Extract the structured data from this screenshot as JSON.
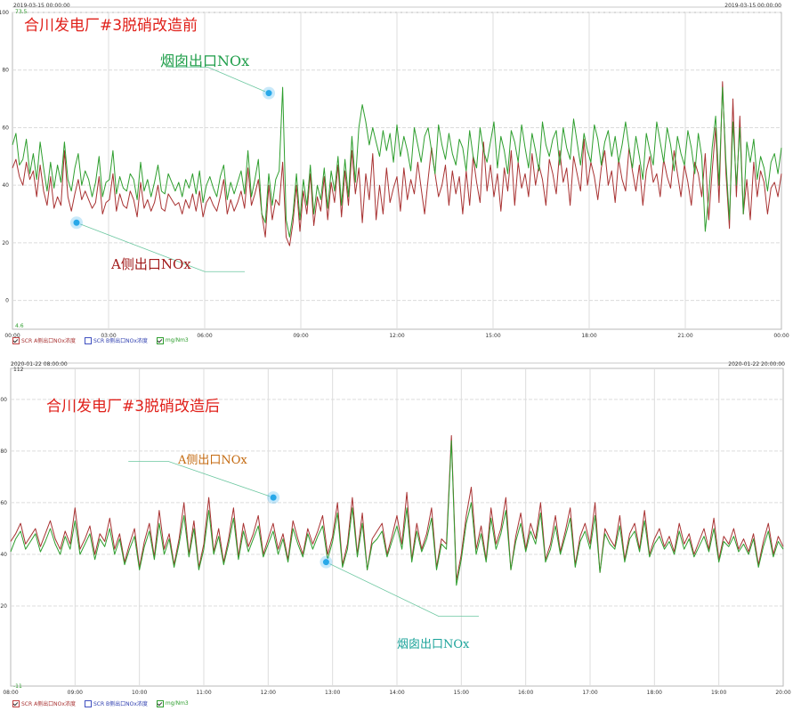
{
  "colors": {
    "red_series": "#a83232",
    "green_series": "#2e9e2e",
    "title_red": "#e0201a",
    "annot_green": "#1f9e4a",
    "annot_darkred": "#a01818",
    "annot_orange": "#c46a10",
    "annot_teal": "#1ba39a",
    "marker": "#29a8e8"
  },
  "chart_data": [
    {
      "type": "line",
      "title": "合川发电厂#3脱硝改造前",
      "header_left": "2019-03-15 00:00:00",
      "header_right": "2019-03-15 00:00:00",
      "top_value": "73.5",
      "bottom_value": "4.6",
      "yticks": [
        "100",
        "80",
        "60",
        "40",
        "20",
        "0"
      ],
      "ylim": [
        -10,
        100
      ],
      "xticks": [
        "00:00",
        "03:00",
        "06:00",
        "09:00",
        "12:00",
        "15:00",
        "18:00",
        "21:00",
        "00:00"
      ],
      "xlim": [
        0,
        24
      ],
      "legend": [
        "SCR A侧出口NOx浓度",
        "SCR B侧出口NOx浓度",
        "mg/Nm3"
      ],
      "legend_checked": [
        true,
        false,
        true
      ],
      "annotations": [
        {
          "text": "烟囱出口NOx",
          "color": "#1f9e4a",
          "point": [
            8.0,
            72
          ],
          "label_anchor": [
            6.1,
            81
          ],
          "label_xy": [
            6.0,
            82
          ]
        },
        {
          "text": "A侧出口NOx",
          "color": "#a01818",
          "point": [
            2.0,
            27
          ],
          "label_anchor": [
            6.0,
            10
          ],
          "label_xy": [
            3.0,
            12
          ]
        }
      ],
      "series": [
        {
          "name": "SCR A侧出口NOx浓度",
          "color": "#a83232",
          "values": [
            46,
            49,
            43,
            40,
            48,
            42,
            45,
            36,
            47,
            38,
            33,
            43,
            32,
            36,
            33,
            52,
            36,
            31,
            37,
            42,
            35,
            38,
            35,
            32,
            34,
            43,
            30,
            34,
            35,
            44,
            31,
            37,
            33,
            32,
            38,
            35,
            29,
            41,
            32,
            35,
            31,
            34,
            40,
            32,
            31,
            37,
            35,
            33,
            34,
            30,
            35,
            32,
            37,
            31,
            38,
            29,
            34,
            36,
            33,
            31,
            36,
            42,
            30,
            35,
            31,
            34,
            38,
            32,
            46,
            33,
            37,
            42,
            30,
            22,
            40,
            28,
            35,
            33,
            48,
            22,
            19,
            27,
            40,
            24,
            38,
            30,
            44,
            26,
            36,
            31,
            43,
            28,
            41,
            34,
            47,
            29,
            45,
            33,
            52,
            37,
            46,
            27,
            44,
            35,
            51,
            28,
            40,
            30,
            46,
            34,
            39,
            43,
            31,
            46,
            35,
            42,
            37,
            48,
            39,
            30,
            42,
            53,
            44,
            36,
            40,
            47,
            33,
            45,
            37,
            43,
            30,
            45,
            33,
            50,
            41,
            34,
            55,
            38,
            47,
            36,
            44,
            31,
            46,
            38,
            52,
            33,
            48,
            39,
            44,
            36,
            51,
            40,
            47,
            42,
            33,
            49,
            44,
            37,
            52,
            41,
            46,
            33,
            50,
            44,
            38,
            56,
            40,
            48,
            43,
            35,
            46,
            52,
            40,
            45,
            34,
            49,
            42,
            38,
            53,
            45,
            38,
            47,
            33,
            45,
            50,
            41,
            44,
            36,
            49,
            43,
            39,
            52,
            44,
            36,
            47,
            41,
            33,
            48,
            44,
            36,
            51,
            28,
            45,
            60,
            34,
            76,
            44,
            25,
            70,
            36,
            64,
            30,
            42,
            28,
            48,
            36,
            45,
            41,
            30,
            39,
            41,
            36,
            44
          ]
        },
        {
          "name": "mg/Nm3",
          "color": "#2e9e2e",
          "values": [
            54,
            58,
            47,
            49,
            56,
            44,
            51,
            42,
            55,
            46,
            38,
            48,
            39,
            47,
            41,
            55,
            42,
            38,
            46,
            51,
            40,
            45,
            42,
            36,
            41,
            50,
            36,
            41,
            42,
            52,
            37,
            43,
            39,
            38,
            44,
            42,
            35,
            48,
            38,
            42,
            36,
            41,
            47,
            38,
            37,
            44,
            41,
            38,
            41,
            36,
            42,
            39,
            44,
            37,
            45,
            34,
            40,
            43,
            39,
            36,
            43,
            47,
            35,
            41,
            37,
            41,
            45,
            37,
            52,
            36,
            42,
            49,
            30,
            27,
            44,
            33,
            42,
            45,
            74,
            28,
            22,
            30,
            44,
            28,
            42,
            33,
            47,
            30,
            40,
            35,
            46,
            32,
            45,
            38,
            50,
            33,
            49,
            36,
            57,
            41,
            60,
            68,
            62,
            54,
            60,
            55,
            50,
            59,
            52,
            58,
            48,
            61,
            50,
            57,
            52,
            45,
            60,
            54,
            48,
            57,
            60,
            52,
            44,
            61,
            54,
            49,
            58,
            51,
            47,
            56,
            53,
            45,
            59,
            50,
            46,
            60,
            52,
            48,
            55,
            62,
            46,
            57,
            52,
            44,
            59,
            55,
            48,
            61,
            53,
            46,
            58,
            52,
            45,
            62,
            54,
            50,
            56,
            59,
            47,
            60,
            53,
            49,
            63,
            55,
            47,
            58,
            52,
            48,
            61,
            56,
            47,
            55,
            59,
            50,
            57,
            48,
            54,
            62,
            53,
            46,
            57,
            50,
            42,
            58,
            52,
            47,
            62,
            55,
            48,
            60,
            54,
            45,
            57,
            51,
            47,
            59,
            53,
            44,
            58,
            50,
            24,
            36,
            53,
            64,
            40,
            74,
            48,
            28,
            62,
            40,
            60,
            30,
            55,
            48,
            56,
            42,
            50,
            46,
            38,
            48,
            51,
            44,
            53
          ]
        }
      ]
    },
    {
      "type": "line",
      "title": "合川发电厂#3脱硝改造后",
      "header_left": "2020-01-22 08:00:00",
      "header_right": "2020-01-22 20:00:00",
      "top_value": "112",
      "bottom_value": "-11",
      "yticks": [
        "100",
        "80",
        "60",
        "40",
        "20"
      ],
      "ylim": [
        -11,
        112
      ],
      "xticks": [
        "08:00",
        "09:00",
        "10:00",
        "11:00",
        "12:00",
        "13:00",
        "14:00",
        "15:00",
        "16:00",
        "17:00",
        "18:00",
        "19:00",
        "20:00"
      ],
      "xlim": [
        8,
        20
      ],
      "legend": [
        "SCR A侧出口NOx浓度",
        "SCR B侧出口NOx浓度",
        "mg/Nm3"
      ],
      "legend_checked": [
        true,
        false,
        true
      ],
      "annotations": [
        {
          "text": "A侧出口NOx",
          "color": "#c46a10",
          "point": [
            12.08,
            62
          ],
          "label_anchor": [
            10.45,
            76
          ],
          "label_xy": [
            10.62,
            77
          ]
        },
        {
          "text": "烟囱出口NOx",
          "color": "#1ba39a",
          "point": [
            12.9,
            37
          ],
          "label_anchor": [
            14.65,
            16
          ],
          "label_xy": [
            13.95,
            17
          ]
        }
      ],
      "series": [
        {
          "name": "SCR A侧出口NOx浓度",
          "color": "#a83232",
          "values": [
            45,
            48,
            52,
            44,
            47,
            50,
            43,
            48,
            53,
            46,
            42,
            49,
            44,
            58,
            42,
            46,
            51,
            40,
            48,
            45,
            54,
            42,
            48,
            37,
            44,
            50,
            35,
            45,
            52,
            39,
            57,
            42,
            48,
            36,
            46,
            60,
            40,
            53,
            35,
            44,
            62,
            41,
            50,
            37,
            46,
            58,
            39,
            52,
            43,
            48,
            55,
            40,
            46,
            52,
            42,
            48,
            38,
            53,
            46,
            40,
            50,
            44,
            49,
            55,
            40,
            47,
            60,
            36,
            44,
            62,
            40,
            56,
            34,
            46,
            49,
            52,
            40,
            47,
            55,
            44,
            64,
            38,
            52,
            42,
            48,
            58,
            35,
            46,
            44,
            86,
            30,
            40,
            55,
            66,
            42,
            51,
            38,
            58,
            44,
            50,
            62,
            34,
            47,
            56,
            42,
            52,
            46,
            60,
            38,
            44,
            55,
            41,
            49,
            58,
            36,
            47,
            52,
            44,
            60,
            33,
            50,
            46,
            43,
            55,
            38,
            48,
            52,
            42,
            57,
            40,
            46,
            50,
            43,
            47,
            41,
            52,
            44,
            48,
            40,
            45,
            50,
            42,
            54,
            38,
            47,
            44,
            50,
            42,
            46,
            41,
            48,
            36,
            45,
            52,
            40,
            47,
            43
          ]
        },
        {
          "name": "mg/Nm3",
          "color": "#2e9e2e",
          "values": [
            41,
            46,
            49,
            42,
            45,
            48,
            41,
            45,
            50,
            44,
            40,
            47,
            42,
            53,
            40,
            44,
            48,
            38,
            46,
            43,
            50,
            40,
            46,
            36,
            42,
            47,
            34,
            43,
            49,
            38,
            52,
            40,
            46,
            35,
            44,
            55,
            39,
            50,
            34,
            42,
            57,
            40,
            47,
            36,
            44,
            54,
            38,
            49,
            41,
            46,
            51,
            39,
            44,
            49,
            40,
            46,
            37,
            50,
            44,
            39,
            48,
            42,
            47,
            51,
            38,
            45,
            56,
            35,
            42,
            58,
            39,
            52,
            34,
            44,
            46,
            49,
            39,
            45,
            51,
            42,
            58,
            37,
            49,
            41,
            46,
            54,
            34,
            44,
            42,
            84,
            28,
            38,
            52,
            60,
            40,
            48,
            37,
            54,
            42,
            48,
            57,
            34,
            45,
            52,
            41,
            49,
            44,
            56,
            37,
            42,
            51,
            40,
            47,
            54,
            35,
            45,
            49,
            42,
            55,
            33,
            48,
            44,
            42,
            51,
            37,
            46,
            49,
            41,
            53,
            39,
            44,
            47,
            42,
            45,
            40,
            49,
            42,
            46,
            39,
            43,
            47,
            41,
            50,
            37,
            45,
            43,
            47,
            41,
            44,
            40,
            46,
            35,
            43,
            49,
            39,
            45,
            42
          ]
        }
      ]
    }
  ]
}
